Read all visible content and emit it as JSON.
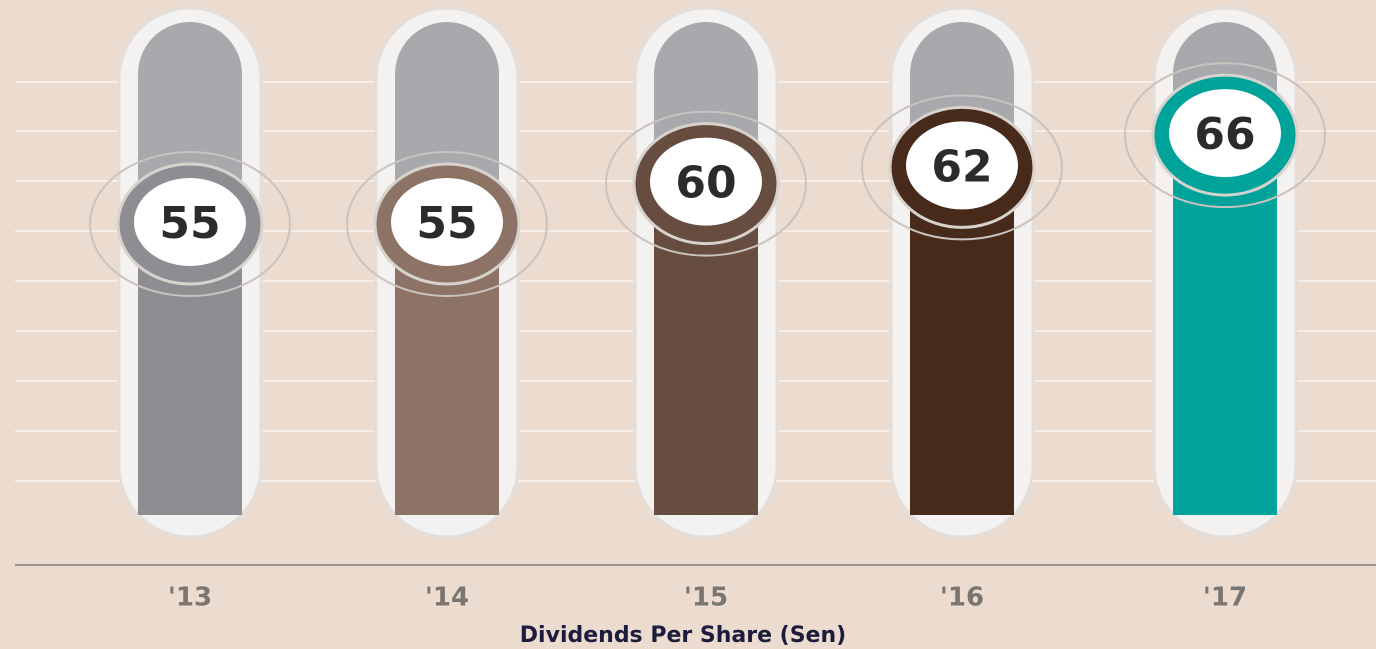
{
  "chart_data": {
    "type": "bar",
    "categories": [
      "'13",
      "'14",
      "'15",
      "'16",
      "'17"
    ],
    "values": [
      55,
      55,
      60,
      62,
      66
    ],
    "colors": [
      "#8e8e92",
      "#8d7365",
      "#664d40",
      "#472a1a",
      "#00a39a"
    ],
    "xlabel": "Dividends Per Share (Sen)",
    "ylim": [
      19,
      79
    ]
  }
}
